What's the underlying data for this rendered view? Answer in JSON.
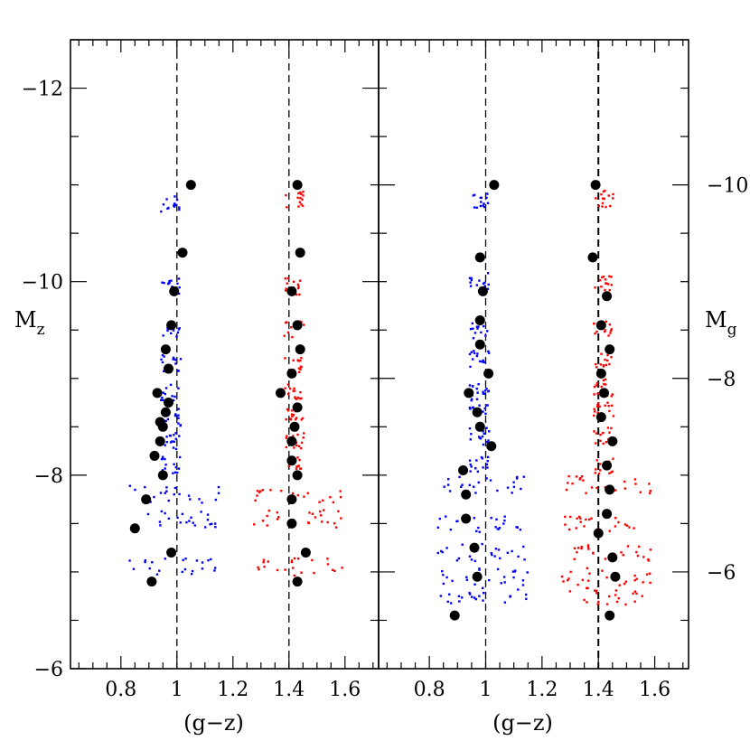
{
  "chart_data": {
    "type": "scatter",
    "colors": {
      "blue": "#0000ff",
      "red": "#ff0000",
      "black": "#000000"
    },
    "panels": [
      {
        "name": "left",
        "xlabel": "(g−z)",
        "ylabel_main": "M",
        "ylabel_sub": "z",
        "xlim": [
          0.62,
          1.72
        ],
        "ylim": [
          -6,
          -12.5
        ],
        "x_ticklabels": [
          "0.8",
          "1",
          "1.2",
          "1.4",
          "1.6"
        ],
        "y_ticklabels": [
          "−12",
          "−10",
          "−8",
          "−6"
        ],
        "dashed_lines_x": [
          1.0,
          1.4
        ],
        "blue_levels": [
          -10.8,
          -9.95,
          -9.5,
          -9.15,
          -8.85,
          -8.6,
          -8.35,
          -8.1,
          -7.8,
          -7.55,
          -7.05
        ],
        "red_levels": [
          -10.85,
          -9.95,
          -9.5,
          -9.15,
          -8.85,
          -8.6,
          -8.35,
          -8.1,
          -7.8,
          -7.55,
          -7.05
        ],
        "black_points": [
          {
            "x": 1.05,
            "y": -11.0
          },
          {
            "x": 1.02,
            "y": -10.3
          },
          {
            "x": 0.99,
            "y": -9.9
          },
          {
            "x": 0.98,
            "y": -9.55
          },
          {
            "x": 0.96,
            "y": -9.3
          },
          {
            "x": 0.97,
            "y": -9.1
          },
          {
            "x": 0.93,
            "y": -8.85
          },
          {
            "x": 0.97,
            "y": -8.75
          },
          {
            "x": 0.96,
            "y": -8.65
          },
          {
            "x": 0.94,
            "y": -8.55
          },
          {
            "x": 0.95,
            "y": -8.5
          },
          {
            "x": 0.94,
            "y": -8.35
          },
          {
            "x": 0.92,
            "y": -8.2
          },
          {
            "x": 0.95,
            "y": -8.0
          },
          {
            "x": 0.89,
            "y": -7.75
          },
          {
            "x": 0.85,
            "y": -7.45
          },
          {
            "x": 0.98,
            "y": -7.2
          },
          {
            "x": 0.91,
            "y": -6.9
          },
          {
            "x": 1.43,
            "y": -11.0
          },
          {
            "x": 1.44,
            "y": -10.3
          },
          {
            "x": 1.41,
            "y": -9.9
          },
          {
            "x": 1.43,
            "y": -9.55
          },
          {
            "x": 1.44,
            "y": -9.3
          },
          {
            "x": 1.41,
            "y": -9.05
          },
          {
            "x": 1.37,
            "y": -8.85
          },
          {
            "x": 1.43,
            "y": -8.7
          },
          {
            "x": 1.42,
            "y": -8.5
          },
          {
            "x": 1.41,
            "y": -8.35
          },
          {
            "x": 1.41,
            "y": -8.15
          },
          {
            "x": 1.43,
            "y": -8.0
          },
          {
            "x": 1.41,
            "y": -7.75
          },
          {
            "x": 1.41,
            "y": -7.5
          },
          {
            "x": 1.46,
            "y": -7.2
          },
          {
            "x": 1.43,
            "y": -6.9
          }
        ]
      },
      {
        "name": "right",
        "xlabel": "(g−z)",
        "ylabel_main": "M",
        "ylabel_sub": "g",
        "xlim": [
          0.62,
          1.72
        ],
        "ylim": [
          -5,
          -11.5
        ],
        "x_ticklabels": [
          "0.8",
          "1",
          "1.2",
          "1.4",
          "1.6"
        ],
        "y_ticklabels": [
          "−10",
          "−8",
          "−6"
        ],
        "dashed_lines_x": [
          1.0,
          1.4
        ],
        "blue_levels": [
          -9.85,
          -9.0,
          -8.5,
          -8.2,
          -7.9,
          -7.7,
          -7.4,
          -7.1,
          -6.9,
          -6.5,
          -6.2,
          -5.95,
          -5.75
        ],
        "red_levels": [
          -9.85,
          -9.0,
          -8.5,
          -8.2,
          -7.9,
          -7.7,
          -7.4,
          -7.1,
          -6.9,
          -6.5,
          -6.2,
          -5.95,
          -5.75
        ],
        "black_points": [
          {
            "x": 1.03,
            "y": -10.0
          },
          {
            "x": 0.98,
            "y": -9.25
          },
          {
            "x": 0.99,
            "y": -8.9
          },
          {
            "x": 0.98,
            "y": -8.6
          },
          {
            "x": 0.98,
            "y": -8.35
          },
          {
            "x": 1.01,
            "y": -8.05
          },
          {
            "x": 0.94,
            "y": -7.85
          },
          {
            "x": 0.97,
            "y": -7.65
          },
          {
            "x": 0.98,
            "y": -7.5
          },
          {
            "x": 1.02,
            "y": -7.3
          },
          {
            "x": 0.92,
            "y": -7.05
          },
          {
            "x": 0.93,
            "y": -6.8
          },
          {
            "x": 0.93,
            "y": -6.55
          },
          {
            "x": 0.96,
            "y": -6.25
          },
          {
            "x": 0.97,
            "y": -5.95
          },
          {
            "x": 0.89,
            "y": -5.55
          },
          {
            "x": 1.39,
            "y": -10.0
          },
          {
            "x": 1.38,
            "y": -9.25
          },
          {
            "x": 1.43,
            "y": -8.85
          },
          {
            "x": 1.41,
            "y": -8.55
          },
          {
            "x": 1.44,
            "y": -8.3
          },
          {
            "x": 1.41,
            "y": -8.05
          },
          {
            "x": 1.42,
            "y": -7.85
          },
          {
            "x": 1.41,
            "y": -7.6
          },
          {
            "x": 1.45,
            "y": -7.35
          },
          {
            "x": 1.43,
            "y": -7.1
          },
          {
            "x": 1.44,
            "y": -6.85
          },
          {
            "x": 1.43,
            "y": -6.6
          },
          {
            "x": 1.4,
            "y": -6.4
          },
          {
            "x": 1.45,
            "y": -6.15
          },
          {
            "x": 1.46,
            "y": -5.95
          },
          {
            "x": 1.44,
            "y": -5.55
          }
        ]
      }
    ]
  }
}
